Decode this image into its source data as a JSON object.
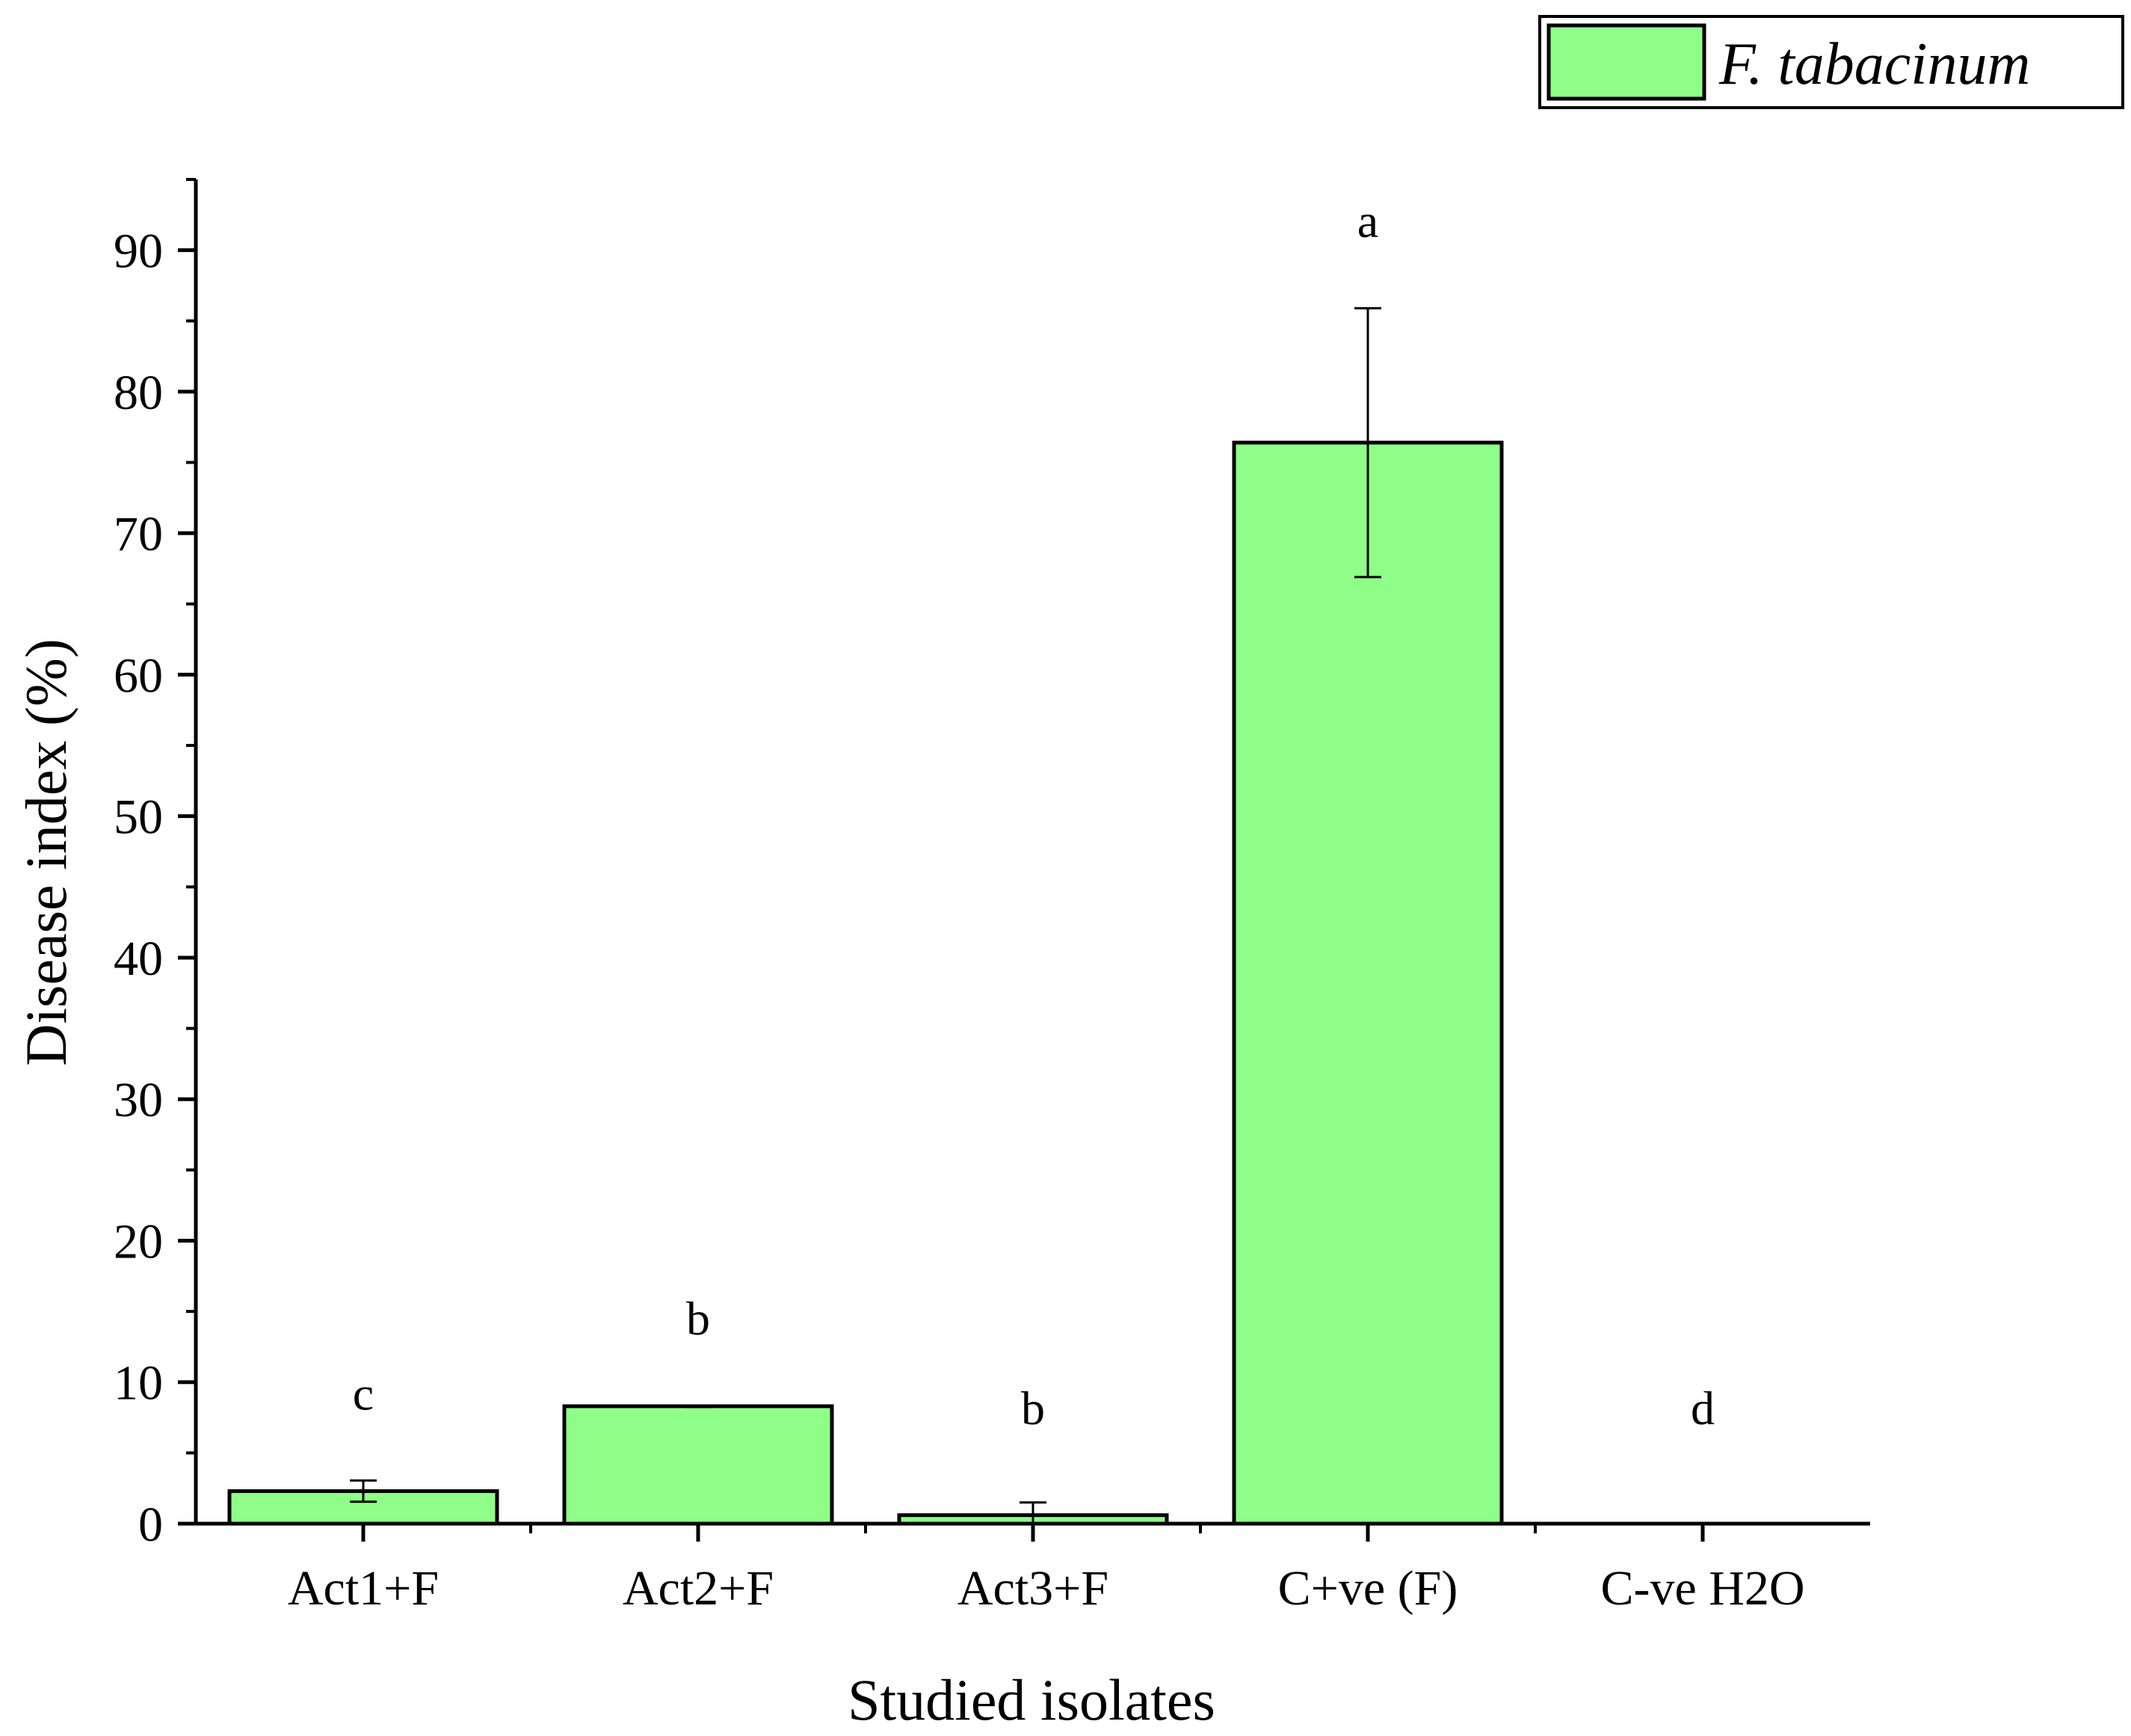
{
  "chart_data": {
    "type": "bar",
    "categories": [
      "Act1+F",
      "Act2+F",
      "Act3+F",
      "C+ve (F)",
      "C-ve H2O"
    ],
    "series": [
      {
        "name": "F. tabacinum",
        "values": [
          2.3,
          8.3,
          0.6,
          76.4,
          0
        ],
        "errors": [
          0.75,
          0.05,
          0.9,
          9.5,
          0
        ],
        "significance": [
          "c",
          "b",
          "b",
          "a",
          "d"
        ]
      }
    ],
    "title": "",
    "xlabel": "Studied isolates",
    "ylabel": "Disease index (%)",
    "ylim": [
      0,
      95
    ],
    "yticks": [
      0,
      10,
      20,
      30,
      40,
      50,
      60,
      70,
      80,
      90
    ],
    "grid": false,
    "legend_position": "top-right",
    "colors": {
      "bar_fill": "#8ffe88",
      "bar_stroke": "#000000",
      "axis": "#000000"
    }
  }
}
